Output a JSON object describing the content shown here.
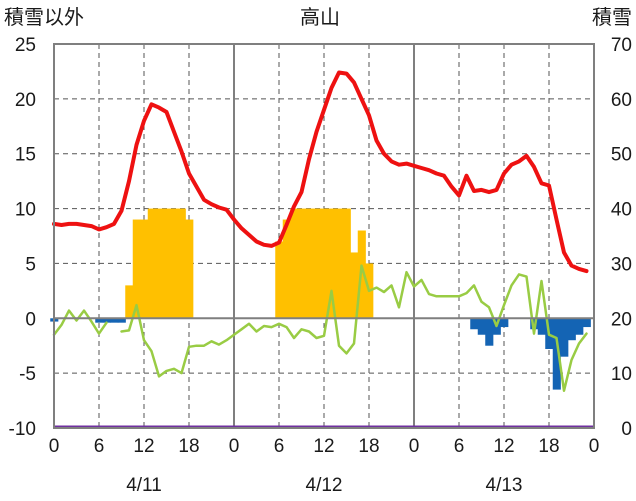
{
  "chart_data": {
    "type": "bar+line",
    "title": "高山",
    "left_axis_label": "積雪以外",
    "right_axis_label": "積雪",
    "left_ylim": [
      -10,
      25
    ],
    "left_yticks": [
      "25",
      "20",
      "15",
      "10",
      "5",
      "0",
      "-5",
      "-10"
    ],
    "right_ylim": [
      0,
      70
    ],
    "right_yticks": [
      "70",
      "60",
      "50",
      "40",
      "30",
      "20",
      "10",
      "0"
    ],
    "x_hours": [
      0,
      72
    ],
    "x_tick_labels": [
      "0",
      "6",
      "12",
      "18",
      "0",
      "6",
      "12",
      "18",
      "0",
      "6",
      "12",
      "18",
      "0"
    ],
    "date_labels": [
      "4/11",
      "4/12",
      "4/13"
    ],
    "grid": true,
    "colors": {
      "red": "#ee1111",
      "green": "#99cc44",
      "orange_bar": "#ffc000",
      "blue_bar": "#1464b4",
      "purple_base": "#7030a0",
      "frame": "#7f7f7f",
      "grid": "#555555"
    },
    "series": [
      {
        "style": "line",
        "color": "#ee1111",
        "x": [
          0,
          1,
          2,
          3,
          4,
          5,
          6,
          7,
          8,
          9,
          10,
          11,
          12,
          13,
          14,
          15,
          16,
          17,
          18,
          19,
          20,
          21,
          22,
          23,
          24,
          25,
          26,
          27,
          28,
          29,
          30,
          31,
          32,
          33,
          34,
          35,
          36,
          37,
          38,
          39,
          40,
          41,
          42,
          43,
          44,
          45,
          46,
          47,
          48,
          49,
          50,
          51,
          52,
          53,
          54,
          55,
          56,
          57,
          58,
          59,
          60,
          61,
          62,
          63,
          64,
          65,
          66,
          67,
          68,
          69,
          70,
          71
        ],
        "y": [
          8.6,
          8.5,
          8.6,
          8.6,
          8.5,
          8.4,
          8.1,
          8.3,
          8.6,
          9.8,
          12.5,
          15.8,
          18.0,
          19.5,
          19.2,
          18.8,
          17.0,
          15.2,
          13.2,
          12.0,
          10.8,
          10.4,
          10.1,
          9.9,
          9.0,
          8.2,
          7.6,
          7.0,
          6.7,
          6.6,
          6.9,
          8.5,
          10.2,
          11.5,
          14.5,
          17.0,
          19.0,
          21.0,
          22.4,
          22.3,
          21.5,
          20.0,
          18.5,
          16.2,
          15.0,
          14.3,
          14.0,
          14.1,
          13.9,
          13.7,
          13.5,
          13.2,
          13.0,
          12.0,
          11.2,
          13.0,
          11.6,
          11.7,
          11.5,
          11.7,
          13.2,
          14.0,
          14.3,
          14.8,
          13.8,
          12.3,
          12.1,
          9.0,
          6.0,
          4.8,
          4.5,
          4.3
        ]
      },
      {
        "style": "line",
        "color": "#99cc44",
        "x": [
          0,
          1,
          2,
          3,
          4,
          5,
          6,
          7,
          8,
          9,
          10,
          11,
          12,
          13,
          14,
          15,
          16,
          17,
          18,
          19,
          20,
          21,
          22,
          23,
          24,
          25,
          26,
          27,
          28,
          29,
          30,
          31,
          32,
          33,
          34,
          35,
          36,
          37,
          38,
          39,
          40,
          41,
          42,
          43,
          44,
          45,
          46,
          47,
          48,
          49,
          50,
          51,
          52,
          53,
          54,
          55,
          56,
          57,
          58,
          59,
          60,
          61,
          62,
          63,
          64,
          65,
          66,
          67,
          68,
          69,
          70,
          71
        ],
        "y": [
          -1.5,
          -0.6,
          0.7,
          -0.2,
          0.7,
          -0.3,
          -1.4,
          -0.4,
          null,
          -1.2,
          -1.1,
          1.2,
          -2.0,
          -3.0,
          -5.3,
          -4.8,
          -4.6,
          -5.0,
          -2.6,
          -2.5,
          -2.5,
          -2.1,
          -2.4,
          -2.0,
          -1.5,
          -1.0,
          -0.5,
          -1.2,
          -0.7,
          -0.8,
          -0.5,
          -0.8,
          -1.8,
          -1.0,
          -1.2,
          -1.8,
          -1.6,
          2.5,
          -2.5,
          -3.2,
          -2.3,
          4.8,
          2.5,
          2.8,
          2.4,
          3.0,
          1.0,
          4.2,
          2.9,
          3.5,
          2.2,
          2.0,
          2.0,
          2.0,
          2.0,
          2.3,
          3.0,
          1.5,
          1.0,
          -0.7,
          1.2,
          3.0,
          4.0,
          3.8,
          -1.4,
          3.4,
          -1.5,
          -1.8,
          -6.6,
          -3.8,
          -2.3,
          -1.4
        ]
      },
      {
        "style": "bar",
        "axis": "left",
        "color": "#ffc000",
        "x": [
          10,
          11,
          12,
          13,
          14,
          15,
          16,
          17,
          18,
          30,
          31,
          32,
          33,
          34,
          35,
          36,
          37,
          38,
          39,
          40,
          41,
          42
        ],
        "y": [
          3.0,
          9.0,
          9.0,
          10.0,
          10.0,
          10.0,
          10.0,
          10.0,
          9.0,
          7.0,
          9.0,
          10.0,
          10.0,
          10.0,
          10.0,
          10.0,
          10.0,
          10.0,
          10.0,
          6.0,
          8.0,
          5.0
        ]
      },
      {
        "style": "bar",
        "axis": "left",
        "color": "#1464b4",
        "x": [
          0,
          6,
          7,
          8,
          9,
          56,
          57,
          58,
          59,
          60,
          64,
          65,
          66,
          67,
          68,
          69,
          70,
          71
        ],
        "y": [
          -0.3,
          -0.4,
          -0.4,
          -0.4,
          -0.4,
          -1.0,
          -1.5,
          -2.5,
          -1.5,
          -0.8,
          -1.0,
          -1.5,
          -2.8,
          -6.5,
          -3.5,
          -2.0,
          -1.5,
          -0.8
        ]
      }
    ]
  }
}
